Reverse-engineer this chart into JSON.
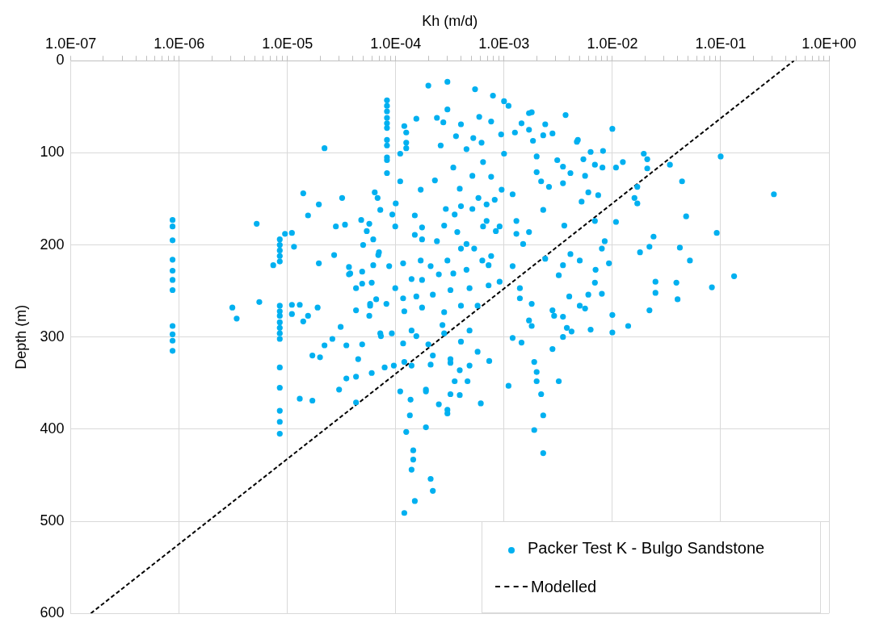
{
  "chart_data": {
    "type": "scatter",
    "xlabel": "Kh (m/d)",
    "ylabel": "Depth (m)",
    "log": "x",
    "grid": true,
    "legend": "bottom right",
    "xlim": [
      1e-07,
      1
    ],
    "xticks": [
      {
        "value": 1e-07,
        "label": "1.0E-07"
      },
      {
        "value": 2e-07,
        "label": null
      },
      {
        "value": 3e-07,
        "label": null
      },
      {
        "value": 4e-07,
        "label": null
      },
      {
        "value": 5e-07,
        "label": null
      },
      {
        "value": 6e-07,
        "label": null
      },
      {
        "value": 7e-07,
        "label": null
      },
      {
        "value": 8e-07,
        "label": null
      },
      {
        "value": 9e-07,
        "label": null
      },
      {
        "value": 1e-06,
        "label": "1.0E-06"
      },
      {
        "value": 2e-06,
        "label": null
      },
      {
        "value": 3e-06,
        "label": null
      },
      {
        "value": 4e-06,
        "label": null
      },
      {
        "value": 5e-06,
        "label": null
      },
      {
        "value": 6e-06,
        "label": null
      },
      {
        "value": 7e-06,
        "label": null
      },
      {
        "value": 8e-06,
        "label": null
      },
      {
        "value": 9e-06,
        "label": null
      },
      {
        "value": 1e-05,
        "label": "1.0E-05"
      },
      {
        "value": 2e-05,
        "label": null
      },
      {
        "value": 3e-05,
        "label": null
      },
      {
        "value": 4e-05,
        "label": null
      },
      {
        "value": 5e-05,
        "label": null
      },
      {
        "value": 6e-05,
        "label": null
      },
      {
        "value": 7e-05,
        "label": null
      },
      {
        "value": 8e-05,
        "label": null
      },
      {
        "value": 9e-05,
        "label": null
      },
      {
        "value": 0.0001,
        "label": "1.0E-04"
      },
      {
        "value": 0.0002,
        "label": null
      },
      {
        "value": 0.0003,
        "label": null
      },
      {
        "value": 0.0004,
        "label": null
      },
      {
        "value": 0.0005,
        "label": null
      },
      {
        "value": 0.0006,
        "label": null
      },
      {
        "value": 0.0007,
        "label": null
      },
      {
        "value": 0.0008,
        "label": null
      },
      {
        "value": 0.0009,
        "label": null
      },
      {
        "value": 0.001,
        "label": "1.0E-03"
      },
      {
        "value": 0.002,
        "label": null
      },
      {
        "value": 0.003,
        "label": null
      },
      {
        "value": 0.004,
        "label": null
      },
      {
        "value": 0.005,
        "label": null
      },
      {
        "value": 0.006,
        "label": null
      },
      {
        "value": 0.007,
        "label": null
      },
      {
        "value": 0.008,
        "label": null
      },
      {
        "value": 0.009,
        "label": null
      },
      {
        "value": 0.01,
        "label": "1.0E-02"
      },
      {
        "value": 0.02,
        "label": null
      },
      {
        "value": 0.03,
        "label": null
      },
      {
        "value": 0.04,
        "label": null
      },
      {
        "value": 0.05,
        "label": null
      },
      {
        "value": 0.06,
        "label": null
      },
      {
        "value": 0.07,
        "label": null
      },
      {
        "value": 0.08,
        "label": null
      },
      {
        "value": 0.09,
        "label": null
      },
      {
        "value": 0.1,
        "label": "1.0E-01"
      },
      {
        "value": 0.2,
        "label": null
      },
      {
        "value": 0.3,
        "label": null
      },
      {
        "value": 0.4,
        "label": null
      },
      {
        "value": 0.5,
        "label": null
      },
      {
        "value": 0.6,
        "label": null
      },
      {
        "value": 0.7,
        "label": null
      },
      {
        "value": 0.8,
        "label": null
      },
      {
        "value": 0.9,
        "label": null
      },
      {
        "value": 1,
        "label": "1.0E+00"
      }
    ],
    "ylim": [
      600,
      0
    ],
    "yticks": [
      0,
      100,
      200,
      300,
      400,
      500,
      600
    ],
    "series": [
      {
        "name": "Packer Test K - Bulgo Sandstone",
        "type": "scatter",
        "color": "#00b0f0",
        "marker": "circle",
        "x": [
          8.7e-07,
          8.7e-07,
          8.7e-07,
          8.7e-07,
          8.7e-07,
          8.7e-07,
          8.7e-07,
          8.7e-07,
          8.7e-07,
          8.7e-07,
          8.7e-07,
          8.5e-06,
          8.5e-06,
          8.5e-06,
          8.5e-06,
          8.5e-06,
          8.5e-06,
          8.5e-06,
          8.5e-06,
          8.5e-06,
          8.5e-06,
          8.5e-06,
          8.5e-06,
          8.5e-06,
          8.5e-06,
          8.5e-06,
          8.5e-06,
          8.5e-06,
          8.3e-05,
          8.3e-05,
          8.3e-05,
          8.3e-05,
          8.3e-05,
          8.3e-05,
          8.3e-05,
          8.3e-05,
          8.3e-05,
          8.3e-05,
          8.3e-05,
          0.0002,
          0.0003,
          0.00054,
          0.00079,
          0.001,
          0.0011,
          0.0003,
          0.00012,
          0.000125,
          0.000125,
          0.000125,
          0.00011,
          0.000155,
          0.00024,
          0.000275,
          0.0004,
          0.00036,
          0.00026,
          0.00052,
          0.00062,
          0.00045,
          0.00064,
          0.00051,
          0.00034,
          0.00023,
          0.00039,
          0.00017,
          0.00011,
          0.00058,
          0.00095,
          0.0012,
          0.00076,
          0.001,
          0.00094,
          0.00059,
          0.00076,
          0.0017,
          0.00126,
          0.00145,
          0.0017,
          0.00185,
          0.0024,
          0.0023,
          0.0028,
          0.0037,
          0.002,
          0.002,
          0.0022,
          0.0031,
          0.0035,
          0.0026,
          0.0035,
          0.0047,
          0.0023,
          0.0018,
          0.01,
          0.0048,
          0.0063,
          0.0082,
          0.0069,
          0.0081,
          0.0054,
          0.0041,
          0.0056,
          0.0074,
          0.006,
          0.0052,
          0.0195,
          0.021,
          0.0125,
          0.0108,
          0.021,
          0.034,
          0.044,
          0.017,
          0.016,
          0.017,
          0.1,
          0.31,
          0.048,
          0.0069,
          0.0108,
          0.0036,
          0.092,
          0.024,
          0.022,
          0.042,
          0.052,
          0.018,
          0.0085,
          0.008,
          0.0093,
          0.0041,
          0.0024,
          0.0035,
          0.005,
          0.007,
          0.0032,
          0.0069,
          0.008,
          0.006,
          0.004,
          0.025,
          0.025,
          0.039,
          0.04,
          0.083,
          0.133,
          0.022,
          0.01,
          0.014,
          0.01,
          0.0063,
          0.0028,
          0.0029,
          0.0035,
          0.0042,
          0.0038,
          0.0056,
          0.005,
          0.0018,
          0.0017,
          0.0018,
          0.0035,
          0.0028,
          0.0012,
          0.00145,
          0.0019,
          0.0011,
          0.002,
          0.002,
          0.0032,
          0.0022,
          0.0023,
          0.0019,
          0.0023,
          0.00061,
          0.0003,
          0.0003,
          0.00019,
          0.000135,
          0.00019,
          0.000125,
          0.000145,
          0.000145,
          0.00014,
          0.00021,
          0.00022,
          0.00015,
          0.00012,
          0.00048,
          0.00073,
          0.00057,
          0.00032,
          0.00046,
          0.00039,
          2.2e-05,
          5.2e-06,
          7.4e-06,
          9.5e-06,
          1.1e-05,
          1.4e-05,
          1.55e-05,
          1.95e-05,
          3.2e-05,
          1.15e-05,
          1.95e-05,
          2.8e-05,
          3.8e-05,
          4.3e-05,
          3.1e-06,
          3.4e-06,
          5.5e-06,
          1.1e-05,
          1.3e-05,
          1.1e-05,
          1.55e-05,
          1.4e-05,
          1.9e-05,
          3.1e-05,
          2.6e-05,
          2.2e-05,
          3.5e-05,
          4.9e-05,
          6.8e-05,
          6.4e-05,
          7.2e-05,
          5.7e-05,
          4.8e-05,
          3.4e-05,
          6.2e-05,
          5.4e-05,
          5e-05,
          7e-05,
          6.2e-05,
          4.9e-05,
          4.9e-05,
          6e-05,
          6.6e-05,
          5.8e-05,
          4.3e-05,
          5.7e-05,
          7.2e-05,
          1.3e-05,
          1.7e-05,
          1.7e-05,
          2e-05,
          3e-05,
          3.5e-05,
          4.3e-05,
          4.5e-05,
          6e-05,
          7.9e-05,
          9.6e-05,
          0.00012,
          0.00014,
          0.00011,
          0.000137,
          0.00019,
          0.00032,
          0.00035,
          0.00021,
          0.00022,
          0.00032,
          0.00039,
          0.00025,
          4.3e-05,
          9.9e-05,
          0.00015,
          0.000175,
          0.00024,
          0.00028,
          0.00037,
          0.00045,
          0.00064,
          0.00084,
          0.0013,
          0.0015,
          0.0017,
          0.00017,
          0.00021,
          0.0003,
          0.0004,
          0.00053,
          0.00076,
          0.00063,
          8.7e-05,
          0.000117,
          9.9e-05,
          0.00014,
          0.000175,
          0.00025,
          0.00034,
          0.00045,
          0.00048,
          0.00032,
          0.00022,
          0.000155,
          0.000117,
          0.00012,
          0.000175,
          0.00028,
          0.0004,
          0.00057,
          0.00072,
          0.00091,
          0.0014,
          0.0014,
          0.00014,
          0.000155,
          0.00027,
          0.00028,
          0.00048,
          0.0004,
          0.0002,
          0.000117,
          9.2e-05,
          7.3e-05,
          8.2e-05,
          5.8e-05,
          3.7e-05,
          3.7e-05,
          2.7e-05,
          6.9e-05,
          0.00072,
          0.0012,
          0.0001,
          9.3e-05,
          0.00015,
          0.000175,
          0.00029,
          0.00035,
          0.0004,
          0.00051,
          0.00069,
          0.00091,
          0.0013,
          0.00069,
          0.00082
        ],
        "values": [
          173,
          180,
          195,
          216,
          228,
          238,
          249,
          288,
          297,
          304,
          315,
          194,
          200,
          206,
          212,
          218,
          266,
          272,
          277,
          284,
          290,
          296,
          302,
          333,
          355,
          380,
          392,
          405,
          43,
          49,
          55,
          62,
          68,
          73,
          86,
          92,
          105,
          108,
          122,
          27,
          23,
          31,
          38,
          44,
          49,
          53,
          71,
          78,
          89,
          95,
          101,
          63,
          62,
          67,
          69,
          82,
          92,
          84,
          89,
          96,
          110,
          125,
          116,
          130,
          139,
          140,
          131,
          149,
          140,
          145,
          126,
          101,
          80,
          61,
          66,
          57,
          78,
          68,
          75,
          87,
          69,
          81,
          79,
          59,
          104,
          121,
          131,
          108,
          115,
          137,
          133,
          88,
          162,
          56,
          74,
          86,
          99,
          98,
          113,
          116,
          107,
          122,
          125,
          146,
          143,
          153,
          101,
          107,
          110,
          116,
          117,
          113,
          131,
          137,
          149,
          155,
          104,
          145,
          169,
          174,
          175,
          179,
          187,
          191,
          202,
          203,
          217,
          208,
          196,
          204,
          220,
          210,
          215,
          222,
          217,
          227,
          233,
          241,
          253,
          254,
          256,
          240,
          252,
          241,
          259,
          246,
          234,
          271,
          276,
          288,
          295,
          292,
          271,
          277,
          278,
          294,
          290,
          269,
          266,
          264,
          282,
          288,
          300,
          313,
          301,
          306,
          327,
          353,
          338,
          348,
          348,
          362,
          385,
          401,
          426,
          372,
          383,
          379,
          359,
          385,
          398,
          403,
          423,
          433,
          444,
          454,
          467,
          478,
          491,
          331,
          326,
          316,
          328,
          348,
          363,
          95,
          177,
          222,
          188,
          187,
          144,
          168,
          156,
          149,
          202,
          220,
          180,
          231,
          247,
          268,
          280,
          262,
          265,
          265,
          275,
          277,
          283,
          268,
          289,
          302,
          309,
          309,
          308,
          149,
          143,
          162,
          177,
          173,
          178,
          194,
          185,
          200,
          208,
          222,
          229,
          242,
          241,
          259,
          264,
          271,
          277,
          296,
          367,
          369,
          320,
          322,
          357,
          345,
          343,
          324,
          339,
          333,
          331,
          327,
          331,
          359,
          368,
          357,
          362,
          348,
          330,
          320,
          324,
          336,
          373,
          371,
          180,
          189,
          194,
          196,
          179,
          186,
          199,
          180,
          185,
          188,
          199,
          186,
          217,
          223,
          217,
          204,
          204,
          212,
          217,
          223,
          220,
          247,
          237,
          238,
          232,
          231,
          227,
          247,
          249,
          254,
          256,
          258,
          272,
          268,
          273,
          266,
          266,
          244,
          240,
          247,
          258,
          293,
          299,
          287,
          296,
          293,
          305,
          308,
          307,
          296,
          299,
          264,
          266,
          224,
          232,
          211,
          211,
          222,
          223,
          155,
          167,
          168,
          181,
          161,
          167,
          158,
          161,
          174,
          180,
          174,
          156,
          151
        ]
      },
      {
        "name": "Modelled",
        "type": "line",
        "color": "#000000",
        "line_style": "dashed",
        "marker": "none",
        "x": [
          1.53e-07,
          0.475
        ],
        "values": [
          600,
          0
        ]
      }
    ]
  }
}
